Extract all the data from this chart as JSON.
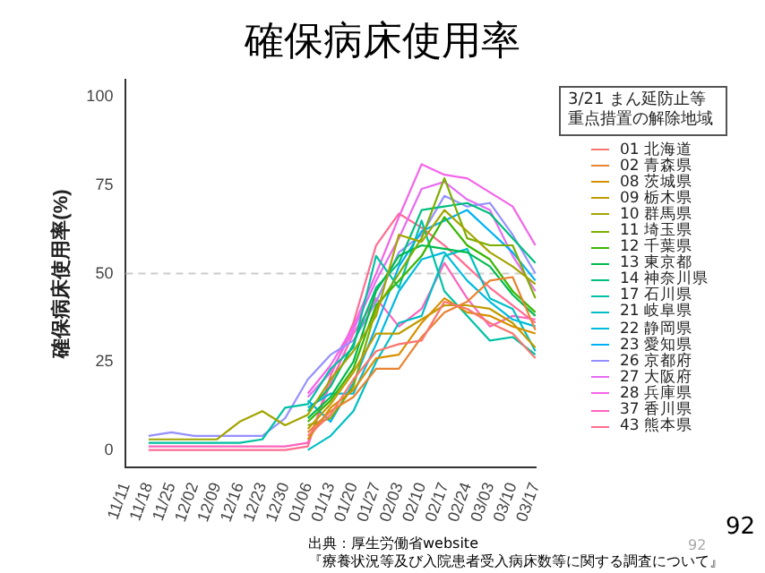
{
  "chart_data": {
    "type": "line",
    "title": "確保病床使用率",
    "ylabel": "確保病床使用率(%)",
    "legend_title": "3/21  まん延防止等重点措置の解除地域",
    "legend": "right",
    "grid": false,
    "marker": "none",
    "line_style": "solid",
    "categories": [
      "11/11",
      "11/18",
      "11/25",
      "12/02",
      "12/09",
      "12/16",
      "12/23",
      "12/30",
      "01/06",
      "01/13",
      "01/20",
      "01/27",
      "02/03",
      "02/10",
      "02/17",
      "02/24",
      "03/03",
      "03/10",
      "03/17"
    ],
    "ylim": [
      -5,
      105
    ],
    "yticks": [
      0,
      25,
      50,
      75,
      100
    ],
    "ref_lines": [
      {
        "axis": "y",
        "value": 50,
        "color": "#cccccc",
        "line_style": "dashed"
      }
    ],
    "annotations": [
      "出典：厚生労働省website",
      "『療養状況等及び入院患者受入病床数等に関する調査について』",
      "92",
      "92"
    ],
    "series": [
      {
        "name": "01 北海道",
        "color": "#f8766d",
        "values": [
          null,
          null,
          null,
          null,
          null,
          null,
          null,
          null,
          4,
          10,
          20,
          28,
          30,
          31,
          42,
          40,
          36,
          33,
          26
        ]
      },
      {
        "name": "02 青森県",
        "color": "#ea8331",
        "values": [
          null,
          null,
          null,
          null,
          null,
          null,
          null,
          null,
          5,
          11,
          15,
          23,
          23,
          32,
          39,
          42,
          48,
          49,
          34
        ]
      },
      {
        "name": "08 茨城県",
        "color": "#d89000",
        "values": [
          null,
          null,
          null,
          null,
          null,
          null,
          null,
          null,
          3,
          12,
          17,
          26,
          27,
          36,
          43,
          39,
          38,
          35,
          33
        ]
      },
      {
        "name": "09 栃木県",
        "color": "#c09b00",
        "values": [
          null,
          null,
          null,
          null,
          null,
          null,
          null,
          null,
          6,
          13,
          22,
          33,
          33,
          37,
          41,
          41,
          40,
          36,
          29
        ]
      },
      {
        "name": "10 群馬県",
        "color": "#a3a500",
        "values": [
          null,
          3,
          3,
          3,
          3,
          8,
          11,
          7,
          10,
          20,
          28,
          38,
          61,
          59,
          68,
          62,
          56,
          52,
          47
        ]
      },
      {
        "name": "11 埼玉県",
        "color": "#7cae00",
        "values": [
          null,
          null,
          null,
          null,
          null,
          null,
          null,
          null,
          7,
          9,
          18,
          40,
          50,
          60,
          77,
          60,
          58,
          58,
          43
        ]
      },
      {
        "name": "12 千葉県",
        "color": "#39b600",
        "values": [
          null,
          null,
          null,
          null,
          null,
          null,
          null,
          null,
          8,
          14,
          23,
          41,
          48,
          55,
          66,
          58,
          54,
          45,
          39
        ]
      },
      {
        "name": "13 東京都",
        "color": "#00bb4e",
        "values": [
          null,
          null,
          null,
          null,
          null,
          null,
          null,
          null,
          9,
          15,
          25,
          45,
          55,
          58,
          57,
          56,
          52,
          44,
          38
        ]
      },
      {
        "name": "14 神奈川県",
        "color": "#00bf7d",
        "values": [
          null,
          null,
          null,
          null,
          null,
          null,
          null,
          null,
          11,
          18,
          30,
          46,
          53,
          68,
          69,
          70,
          67,
          60,
          53
        ]
      },
      {
        "name": "17 石川県",
        "color": "#00c1a3",
        "values": [
          null,
          2,
          2,
          2,
          2,
          2,
          3,
          12,
          13,
          23,
          29,
          55,
          46,
          65,
          45,
          38,
          31,
          32,
          27
        ]
      },
      {
        "name": "21 岐阜県",
        "color": "#00bfc4",
        "values": [
          null,
          null,
          null,
          null,
          null,
          null,
          null,
          null,
          0,
          4,
          11,
          25,
          36,
          38,
          55,
          57,
          43,
          40,
          28
        ]
      },
      {
        "name": "22 静岡県",
        "color": "#00bae0",
        "values": [
          null,
          null,
          null,
          null,
          null,
          null,
          null,
          null,
          12,
          16,
          16,
          30,
          45,
          54,
          56,
          48,
          42,
          37,
          35
        ]
      },
      {
        "name": "23 愛知県",
        "color": "#00b0f6",
        "values": [
          null,
          null,
          null,
          null,
          null,
          null,
          null,
          null,
          14,
          8,
          19,
          35,
          52,
          62,
          65,
          68,
          62,
          56,
          48
        ]
      },
      {
        "name": "26 京都府",
        "color": "#9590ff",
        "values": [
          null,
          4,
          5,
          4,
          4,
          4,
          4,
          9,
          20,
          27,
          31,
          42,
          56,
          61,
          72,
          69,
          70,
          61,
          50
        ]
      },
      {
        "name": "27 大阪府",
        "color": "#e76bf3",
        "values": [
          null,
          null,
          null,
          null,
          null,
          null,
          null,
          null,
          15,
          22,
          34,
          48,
          60,
          74,
          76,
          71,
          68,
          55,
          45
        ]
      },
      {
        "name": "28 兵庫県",
        "color": "#f464e8",
        "values": [
          null,
          null,
          null,
          null,
          null,
          null,
          null,
          null,
          16,
          24,
          35,
          50,
          66,
          81,
          78,
          77,
          73,
          69,
          58
        ]
      },
      {
        "name": "37 香川県",
        "color": "#ff62bc",
        "values": [
          null,
          1,
          1,
          1,
          1,
          1,
          1,
          1,
          2,
          19,
          33,
          43,
          35,
          40,
          53,
          43,
          35,
          38,
          37
        ]
      },
      {
        "name": "43 熊本県",
        "color": "#ff6c91",
        "values": [
          null,
          0,
          0,
          0,
          0,
          0,
          0,
          0,
          1,
          21,
          36,
          58,
          67,
          63,
          58,
          52,
          46,
          41,
          36
        ]
      }
    ]
  }
}
